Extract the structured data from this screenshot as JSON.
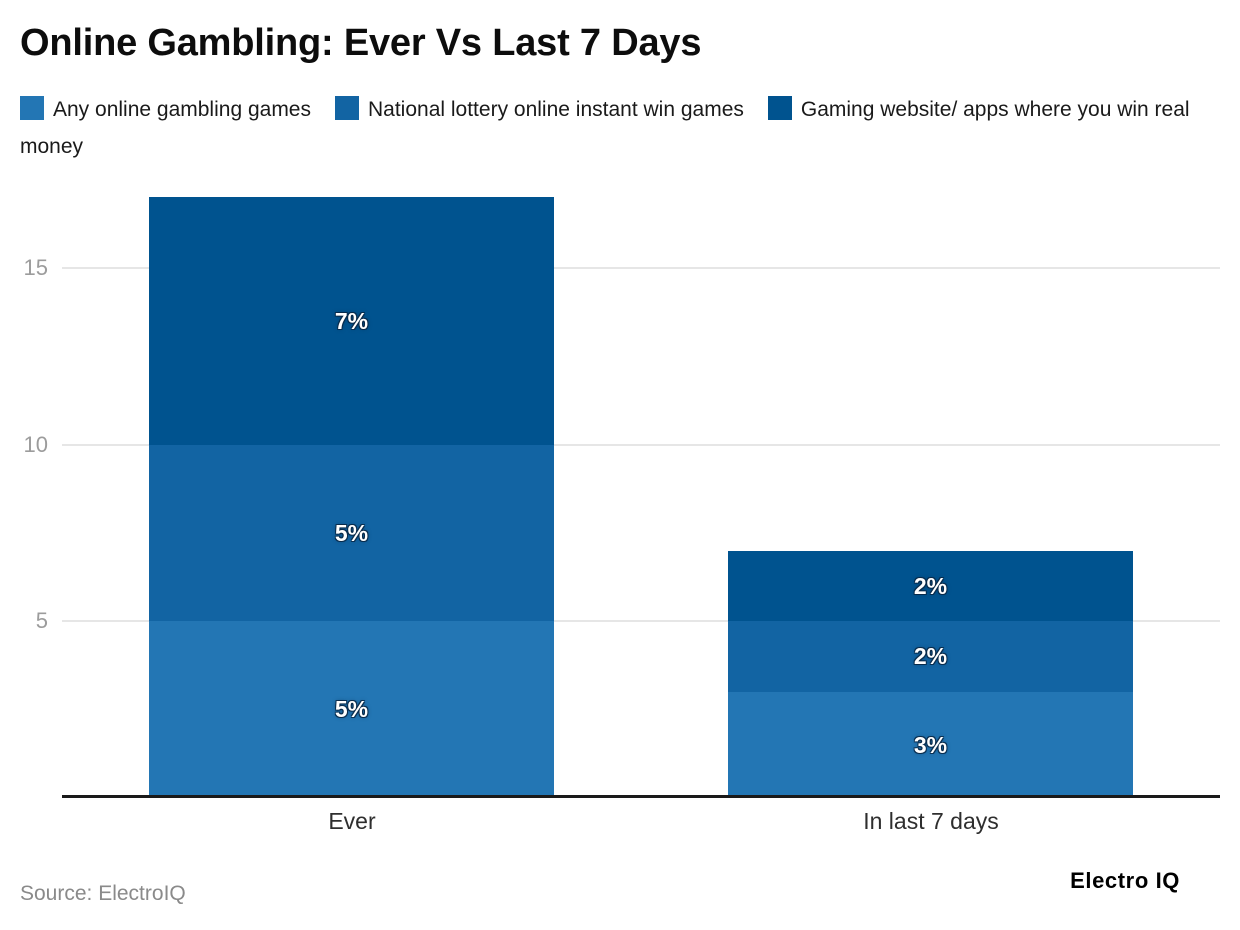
{
  "chart_data": {
    "type": "bar",
    "stacked": true,
    "title": "Online Gambling: Ever Vs Last 7 Days",
    "categories": [
      "Ever",
      "In last 7 days"
    ],
    "series": [
      {
        "name": "Any online gambling games",
        "color": "#2376b4",
        "values": [
          5,
          3
        ]
      },
      {
        "name": "National lottery online instant win games",
        "color": "#1264a3",
        "values": [
          5,
          2
        ]
      },
      {
        "name": "Gaming website/ apps where you win real money",
        "color": "#00538f",
        "values": [
          7,
          2
        ]
      }
    ],
    "value_label_suffix": "%",
    "yticks": [
      5,
      10,
      15
    ],
    "ylim": [
      0,
      17.2
    ],
    "grid": true,
    "legend_position": "top",
    "grid_color": "#e6e6e6",
    "tick_label_color": "#9c9c9c",
    "axis_color": "#1a1a1a"
  },
  "footer": {
    "source_note": "Source: ElectroIQ",
    "brand": "Electro IQ"
  }
}
